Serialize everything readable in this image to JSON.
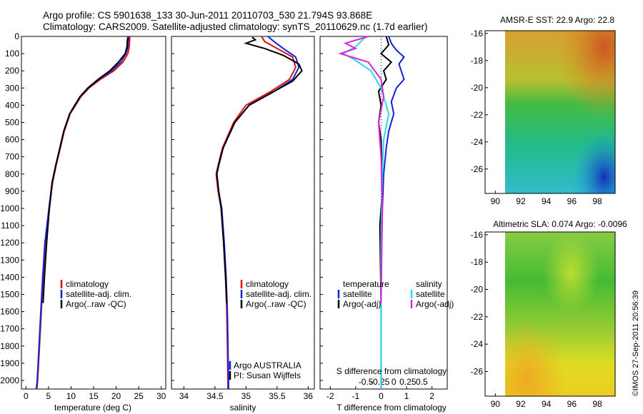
{
  "header": {
    "line1": "Argo profile: CS 5901638_133 30-Jun-2011 20110703_530 21.794S 93.868E",
    "line2": "Climatology: CARS2009. Satellite-adjusted climatology: synTS_20110629.nc (1.7d earlier)"
  },
  "footer_vertical": "©IMOS 27-Sep-2011 20:56:39",
  "colors": {
    "climatology": "#dd1111",
    "satellite": "#1122dd",
    "argo": "#000000",
    "sat_salt": "#22dddd",
    "argo_salt": "#dd22dd"
  },
  "chart_data": [
    {
      "type": "line",
      "id": "temperature",
      "xlabel": "temperature (deg C)",
      "ylabel": "",
      "xlim": [
        -1,
        31
      ],
      "ylim": [
        2050,
        0
      ],
      "xticks": [
        0,
        5,
        10,
        15,
        20,
        25,
        30
      ],
      "yticks": [
        0,
        100,
        200,
        300,
        400,
        500,
        600,
        700,
        800,
        900,
        1000,
        1100,
        1200,
        1300,
        1400,
        1500,
        1600,
        1700,
        1800,
        1900,
        2000
      ],
      "legend": [
        "climatology",
        "satellite-adj. clim.",
        "Argo(..raw -QC)"
      ],
      "series": [
        {
          "name": "climatology",
          "color": "#dd1111",
          "x": [
            23.0,
            23.0,
            22.9,
            22.6,
            21.5,
            19.5,
            16.5,
            14.0,
            12.2,
            11.0,
            9.8,
            8.5,
            7.6,
            6.7,
            5.9,
            5.2,
            4.3,
            3.8,
            3.4,
            3.0,
            2.6,
            2.4
          ],
          "y": [
            0,
            20,
            60,
            100,
            150,
            200,
            250,
            300,
            350,
            400,
            450,
            550,
            650,
            750,
            850,
            1000,
            1200,
            1400,
            1600,
            1800,
            2000,
            2050
          ]
        },
        {
          "name": "satellite-adj. clim.",
          "color": "#1122dd",
          "x": [
            22.7,
            22.7,
            22.6,
            22.2,
            21.0,
            19.0,
            16.2,
            13.8,
            12.0,
            10.8,
            9.7,
            8.4,
            7.5,
            6.6,
            5.8,
            5.1,
            4.2,
            3.7,
            3.3,
            2.9,
            2.5,
            2.3
          ],
          "y": [
            0,
            20,
            60,
            100,
            150,
            200,
            250,
            300,
            350,
            400,
            450,
            550,
            650,
            750,
            850,
            1000,
            1200,
            1400,
            1600,
            1800,
            2000,
            2050
          ]
        },
        {
          "name": "Argo(..raw -QC)",
          "color": "#000000",
          "x": [
            22.6,
            22.5,
            22.4,
            22.0,
            20.5,
            18.6,
            16.0,
            13.7,
            12.0,
            10.9,
            9.7,
            8.4,
            7.5,
            6.6,
            5.8,
            5.2,
            4.6,
            4.1,
            3.8
          ],
          "y": [
            5,
            20,
            60,
            100,
            150,
            200,
            250,
            300,
            350,
            400,
            450,
            550,
            650,
            750,
            850,
            1000,
            1200,
            1400,
            1550
          ]
        }
      ]
    },
    {
      "type": "line",
      "id": "salinity",
      "xlabel": "salinity",
      "xlim": [
        33.8,
        36.1
      ],
      "ylim": [
        2050,
        0
      ],
      "xticks": [
        34,
        34.5,
        35,
        35.5,
        36
      ],
      "legend": [
        "climatology",
        "satellite-adj. clim.",
        "Argo(..raw -QC)"
      ],
      "annotation": [
        "Argo AUSTRALIA",
        "PI: Susan Wijffels"
      ],
      "series": [
        {
          "name": "climatology",
          "color": "#dd1111",
          "x": [
            35.25,
            35.3,
            35.5,
            35.75,
            35.8,
            35.7,
            35.4,
            35.0,
            34.8,
            34.62,
            34.55,
            34.52,
            34.55,
            34.6,
            34.64,
            34.67,
            34.69,
            34.7,
            34.71
          ],
          "y": [
            0,
            30,
            70,
            120,
            180,
            250,
            320,
            400,
            500,
            650,
            750,
            800,
            900,
            1000,
            1200,
            1400,
            1600,
            1800,
            2050
          ]
        },
        {
          "name": "satellite-adj. clim.",
          "color": "#1122dd",
          "x": [
            35.35,
            35.45,
            35.6,
            35.8,
            35.85,
            35.75,
            35.45,
            35.05,
            34.82,
            34.63,
            34.56,
            34.53,
            34.56,
            34.61,
            34.65,
            34.68,
            34.7,
            34.71,
            34.72
          ],
          "y": [
            0,
            30,
            70,
            120,
            180,
            250,
            320,
            400,
            500,
            650,
            750,
            800,
            900,
            1000,
            1200,
            1400,
            1600,
            1800,
            2050
          ]
        },
        {
          "name": "Argo(..raw -QC)",
          "color": "#000000",
          "x": [
            35.1,
            35.15,
            35.0,
            35.3,
            35.6,
            35.85,
            35.9,
            35.75,
            35.45,
            35.05,
            34.82,
            34.63,
            34.56,
            34.53,
            34.56,
            34.6,
            34.64,
            34.67,
            34.69
          ],
          "y": [
            5,
            20,
            40,
            70,
            110,
            160,
            200,
            260,
            320,
            400,
            500,
            650,
            750,
            800,
            900,
            1000,
            1200,
            1400,
            1550
          ]
        }
      ]
    },
    {
      "type": "line",
      "id": "differences",
      "xlabel": "T difference from climatology",
      "xlabel_top": "S difference from climatology",
      "xlim": [
        -2.4,
        2.6
      ],
      "ylim": [
        2050,
        0
      ],
      "xticks": [
        -2,
        -1,
        0,
        1,
        2
      ],
      "xticks_salinity": [
        "-0.5",
        "-0.25",
        "0",
        "0.25",
        "0.5"
      ],
      "legend": [
        "temperature",
        "satellite",
        "Argo(-adj)",
        "salinity",
        "satellite",
        "Argo(-adj)"
      ],
      "series": [
        {
          "name": "temperature satellite",
          "color": "#1122dd",
          "x": [
            0.3,
            0.4,
            0.6,
            0.9,
            0.7,
            0.9,
            0.6,
            0.4,
            0.5,
            0.3,
            0.2,
            0.1,
            0.05,
            0.0,
            0.0
          ],
          "y": [
            0,
            40,
            80,
            120,
            160,
            250,
            300,
            380,
            450,
            550,
            650,
            800,
            1000,
            1400,
            2050
          ]
        },
        {
          "name": "temperature Argo(-adj)",
          "color": "#000000",
          "x": [
            0.2,
            0.3,
            0.0,
            0.4,
            0.1,
            0.2,
            -0.1,
            0.0,
            -0.1,
            0.0,
            0.05,
            -0.05,
            0.0
          ],
          "y": [
            0,
            50,
            100,
            150,
            200,
            250,
            320,
            400,
            500,
            600,
            900,
            1100,
            1550
          ]
        },
        {
          "name": "salinity satellite",
          "color": "#22dddd",
          "x": [
            -0.6,
            -1.0,
            -1.5,
            -1.1,
            -0.4,
            0.0,
            0.3,
            0.1,
            0.05,
            0.0,
            0.0
          ],
          "y": [
            0,
            60,
            100,
            130,
            200,
            300,
            450,
            600,
            800,
            1200,
            2050
          ]
        },
        {
          "name": "salinity Argo(-adj)",
          "color": "#dd22dd",
          "x": [
            -0.5,
            -1.4,
            -1.0,
            -1.6,
            -0.5,
            0.0,
            0.1,
            -0.1,
            0.0,
            0.05,
            0.0
          ],
          "y": [
            0,
            40,
            70,
            100,
            150,
            250,
            350,
            500,
            700,
            1000,
            1550
          ]
        }
      ]
    },
    {
      "type": "heatmap",
      "id": "sst",
      "title": "AMSR-E SST: 22.9 Argo: 22.8",
      "xlim": [
        89.2,
        99.4
      ],
      "ylim": [
        -27.8,
        -15.8
      ],
      "xticks": [
        90,
        92,
        94,
        96,
        98
      ],
      "yticks": [
        -16,
        -18,
        -20,
        -22,
        -24,
        -26
      ],
      "marker": {
        "lon": 93.868,
        "lat": -21.794
      }
    },
    {
      "type": "heatmap",
      "id": "sla",
      "title": "Altimetric SLA: 0.074 Argo: -0.0096",
      "xlim": [
        89.2,
        99.4
      ],
      "ylim": [
        -27.8,
        -15.8
      ],
      "xticks": [
        90,
        92,
        94,
        96,
        98
      ],
      "yticks": [
        -16,
        -18,
        -20,
        -22,
        -24,
        -26
      ],
      "marker": {
        "lon": 93.868,
        "lat": -21.794
      }
    }
  ]
}
